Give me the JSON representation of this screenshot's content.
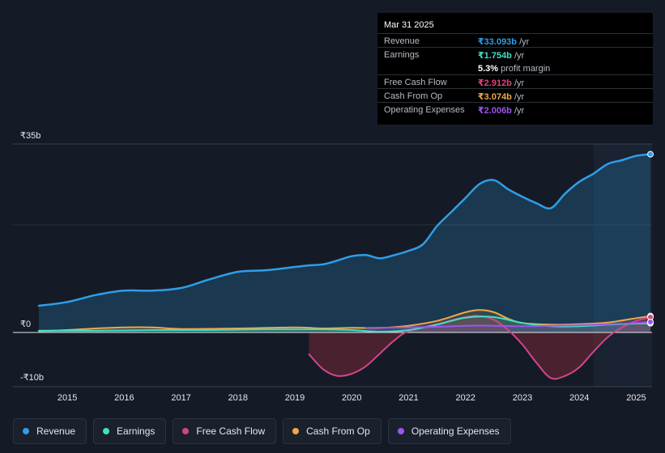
{
  "tooltip": {
    "date": "Mar 31 2025",
    "rows": [
      {
        "label": "Revenue",
        "value": "₹33.093b",
        "unit": "/yr",
        "color": "#2e9ee8"
      },
      {
        "label": "Earnings",
        "value": "₹1.754b",
        "unit": "/yr",
        "color": "#3fe0c5"
      },
      {
        "label": "",
        "value": "5.3%",
        "unit": "profit margin",
        "color": "#ffffff"
      },
      {
        "label": "Free Cash Flow",
        "value": "₹2.912b",
        "unit": "/yr",
        "color": "#e0457b"
      },
      {
        "label": "Cash From Op",
        "value": "₹3.074b",
        "unit": "/yr",
        "color": "#f0a848"
      },
      {
        "label": "Operating Expenses",
        "value": "₹2.006b",
        "unit": "/yr",
        "color": "#9b55ee"
      }
    ]
  },
  "legend": [
    {
      "label": "Revenue",
      "color": "#2e9ee8"
    },
    {
      "label": "Earnings",
      "color": "#3fe0c5"
    },
    {
      "label": "Free Cash Flow",
      "color": "#d0468a"
    },
    {
      "label": "Cash From Op",
      "color": "#f0a848"
    },
    {
      "label": "Operating Expenses",
      "color": "#9b55ee"
    }
  ],
  "chart_data": {
    "type": "line",
    "title": "",
    "y_unit_labels": {
      "top": "₹35b",
      "zero": "₹0",
      "bottom": "-₹10b"
    },
    "ylim": [
      -10,
      35
    ],
    "xlim": [
      2014.5,
      2025.25
    ],
    "x_ticks": [
      "2015",
      "2016",
      "2017",
      "2018",
      "2019",
      "2020",
      "2021",
      "2022",
      "2023",
      "2024",
      "2025"
    ],
    "forecast_shade_start": 2024.25,
    "series": [
      {
        "name": "Revenue",
        "color": "#2e9ee8",
        "x": [
          2014.5,
          2015.0,
          2015.5,
          2016.0,
          2016.5,
          2017.0,
          2017.5,
          2018.0,
          2018.5,
          2019.0,
          2019.25,
          2019.5,
          2019.75,
          2020.0,
          2020.25,
          2020.5,
          2020.75,
          2021.0,
          2021.25,
          2021.5,
          2021.75,
          2022.0,
          2022.25,
          2022.5,
          2022.75,
          2023.0,
          2023.25,
          2023.5,
          2023.75,
          2024.0,
          2024.25,
          2024.5,
          2024.75,
          2025.0,
          2025.25
        ],
        "values": [
          5.0,
          5.7,
          7.0,
          7.8,
          7.8,
          8.3,
          9.9,
          11.3,
          11.6,
          12.2,
          12.5,
          12.7,
          13.4,
          14.2,
          14.4,
          13.8,
          14.4,
          15.2,
          16.4,
          19.8,
          22.4,
          25.0,
          27.6,
          28.3,
          26.6,
          25.2,
          24.0,
          23.1,
          25.8,
          28.0,
          29.5,
          31.3,
          32.0,
          32.8,
          33.1
        ]
      },
      {
        "name": "Earnings",
        "color": "#3fe0c5",
        "x": [
          2014.5,
          2015.5,
          2016.5,
          2017.5,
          2018.5,
          2019.5,
          2020.0,
          2020.5,
          2021.0,
          2021.5,
          2022.0,
          2022.5,
          2023.0,
          2023.5,
          2024.0,
          2024.5,
          2025.0,
          2025.25
        ],
        "values": [
          0.4,
          0.4,
          0.5,
          0.5,
          0.6,
          0.6,
          0.5,
          0.2,
          0.5,
          1.5,
          2.8,
          2.9,
          1.8,
          1.2,
          1.2,
          1.5,
          1.7,
          1.75
        ]
      },
      {
        "name": "Free Cash Flow",
        "color": "#d0468a",
        "x": [
          2019.25,
          2019.5,
          2019.75,
          2020.0,
          2020.25,
          2020.5,
          2020.75,
          2021.0,
          2021.5,
          2022.0,
          2022.25,
          2022.5,
          2022.75,
          2023.0,
          2023.25,
          2023.5,
          2023.75,
          2024.0,
          2024.25,
          2024.5,
          2024.75,
          2025.0,
          2025.25
        ],
        "values": [
          -4.0,
          -6.8,
          -8.0,
          -7.6,
          -6.2,
          -3.8,
          -1.4,
          0.3,
          1.6,
          2.9,
          3.1,
          2.4,
          0.5,
          -2.2,
          -5.6,
          -8.4,
          -8.0,
          -6.4,
          -3.5,
          -0.8,
          1.0,
          2.2,
          2.9
        ]
      },
      {
        "name": "Cash From Op",
        "color": "#f0a848",
        "x": [
          2014.5,
          2015.0,
          2015.5,
          2016.0,
          2016.5,
          2017.0,
          2018.0,
          2019.0,
          2019.5,
          2020.0,
          2020.5,
          2021.0,
          2021.5,
          2022.0,
          2022.25,
          2022.5,
          2022.75,
          2023.0,
          2023.5,
          2024.0,
          2024.5,
          2025.0,
          2025.25
        ],
        "values": [
          0.3,
          0.5,
          0.8,
          1.0,
          1.0,
          0.7,
          0.8,
          1.0,
          0.8,
          0.9,
          0.9,
          1.3,
          2.2,
          3.8,
          4.2,
          3.8,
          2.6,
          1.8,
          1.5,
          1.6,
          1.9,
          2.7,
          3.1
        ]
      },
      {
        "name": "Operating Expenses",
        "color": "#9b55ee",
        "x": [
          2020.25,
          2021.0,
          2021.5,
          2022.0,
          2022.5,
          2023.0,
          2023.5,
          2024.0,
          2024.5,
          2025.0,
          2025.25
        ],
        "values": [
          0.9,
          1.0,
          1.1,
          1.3,
          1.3,
          1.2,
          1.3,
          1.4,
          1.6,
          1.8,
          2.0
        ]
      }
    ]
  }
}
